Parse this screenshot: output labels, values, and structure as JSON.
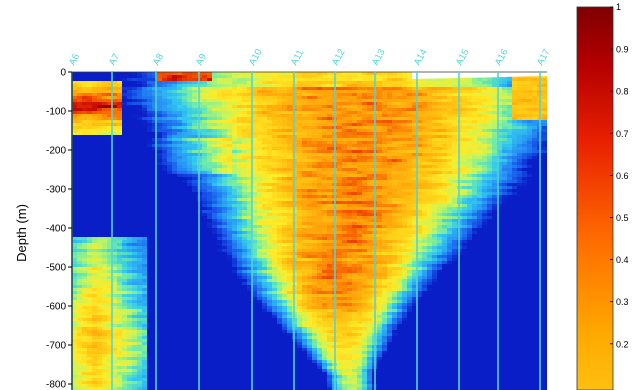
{
  "chart_data": {
    "type": "heatmap",
    "title": "",
    "ylabel": "Depth (m)",
    "y_ticks": [
      0,
      -100,
      -200,
      -300,
      -400,
      -500,
      -600,
      -700,
      -800
    ],
    "y_tick_labels": [
      "0",
      "-100",
      "-200",
      "-300",
      "-400",
      "-500",
      "-600",
      "-700",
      "-800"
    ],
    "ylim": [
      -880,
      0
    ],
    "stations": [
      "A6",
      "A7",
      "A8",
      "A9",
      "A10",
      "A11",
      "A12",
      "A13",
      "A14",
      "A15",
      "A16",
      "A17"
    ],
    "station_line_color": "#57d3d3",
    "colormap": "jet-like, low values blue, high values dark red",
    "colorbar": {
      "ticks": [
        1,
        0.9,
        0.8,
        0.7,
        0.6,
        0.5,
        0.4,
        0.3,
        0.2
      ],
      "tick_labels": [
        "1",
        "0.9",
        "0.8",
        "0.7",
        "0.6",
        "0.5",
        "0.4",
        "0.3",
        "0.2"
      ],
      "range": [
        0,
        1
      ]
    },
    "grid": false,
    "legend": "colorbar-right"
  }
}
